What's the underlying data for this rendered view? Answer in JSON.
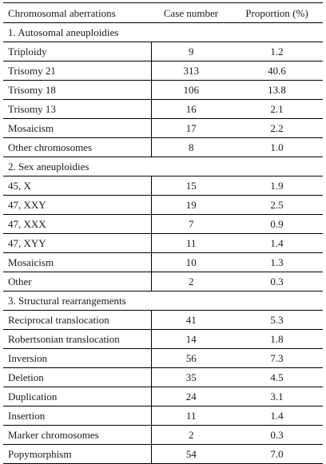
{
  "columns": [
    "Chromosomal aberrations",
    "Case number",
    "Proportion (%)"
  ],
  "sections": [
    {
      "title": "1. Autosomal aneuploidies",
      "rows": [
        {
          "label": "Triploidy",
          "cases": "9",
          "proportion": "1.2"
        },
        {
          "label": "Trisomy 21",
          "cases": "313",
          "proportion": "40.6"
        },
        {
          "label": "Trisomy 18",
          "cases": "106",
          "proportion": "13.8"
        },
        {
          "label": "Trisomy 13",
          "cases": "16",
          "proportion": "2.1"
        },
        {
          "label": "Mosaicism",
          "cases": "17",
          "proportion": "2.2"
        },
        {
          "label": "Other chromosomes",
          "cases": "8",
          "proportion": "1.0"
        }
      ]
    },
    {
      "title": "2. Sex aneuploidies",
      "rows": [
        {
          "label": "45, X",
          "cases": "15",
          "proportion": "1.9"
        },
        {
          "label": "47, XXY",
          "cases": "19",
          "proportion": "2.5"
        },
        {
          "label": "47, XXX",
          "cases": "7",
          "proportion": "0.9"
        },
        {
          "label": "47, XYY",
          "cases": "11",
          "proportion": "1.4"
        },
        {
          "label": "Mosaicism",
          "cases": "10",
          "proportion": "1.3"
        },
        {
          "label": "Other",
          "cases": "2",
          "proportion": "0.3"
        }
      ]
    },
    {
      "title": "3. Structural rearrangements",
      "rows": [
        {
          "label": "Reciprocal translocation",
          "cases": "41",
          "proportion": "5.3"
        },
        {
          "label": "Robertsonian translocation",
          "cases": "14",
          "proportion": "1.8"
        },
        {
          "label": "Inversion",
          "cases": "56",
          "proportion": "7.3"
        },
        {
          "label": "Deletion",
          "cases": "35",
          "proportion": "4.5"
        },
        {
          "label": "Duplication",
          "cases": "24",
          "proportion": "3.1"
        },
        {
          "label": "Insertion",
          "cases": "11",
          "proportion": "1.4"
        },
        {
          "label": "Marker chromosomes",
          "cases": "2",
          "proportion": "0.3"
        },
        {
          "label": "Popymorphism",
          "cases": "54",
          "proportion": "7.0"
        }
      ]
    }
  ]
}
